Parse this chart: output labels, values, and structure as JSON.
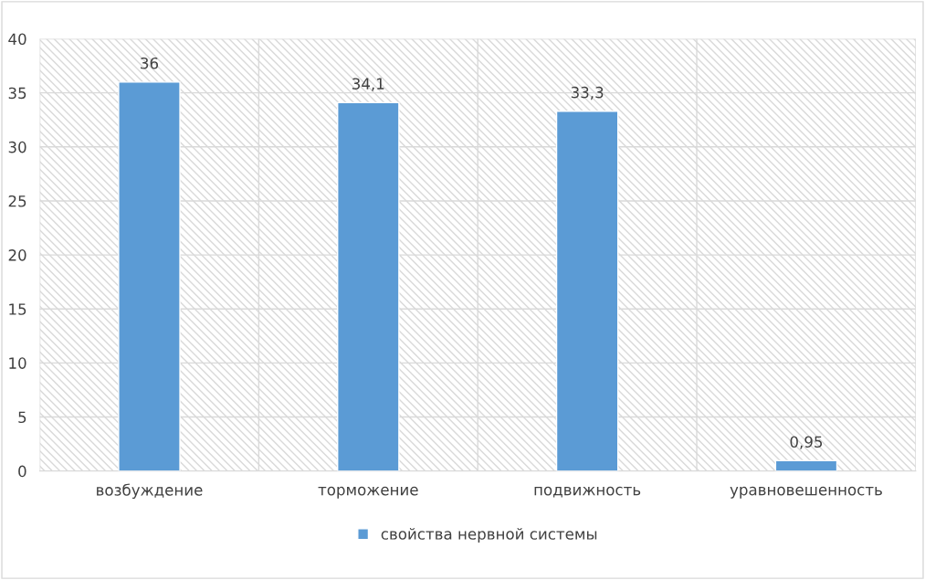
{
  "chart_data": {
    "type": "bar",
    "categories": [
      "возбуждение",
      "торможение",
      "подвижность",
      "уравновешенность"
    ],
    "series": [
      {
        "name": "свойства нервной системы",
        "color": "#5b9bd5",
        "values": [
          36,
          34.1,
          33.3,
          0.95
        ],
        "value_labels": [
          "36",
          "34,1",
          "33,3",
          "0,95"
        ]
      }
    ],
    "ylim": [
      0,
      40
    ],
    "yticks": [
      0,
      5,
      10,
      15,
      20,
      25,
      30,
      35,
      40
    ],
    "grid": true,
    "legend": "bottom"
  }
}
